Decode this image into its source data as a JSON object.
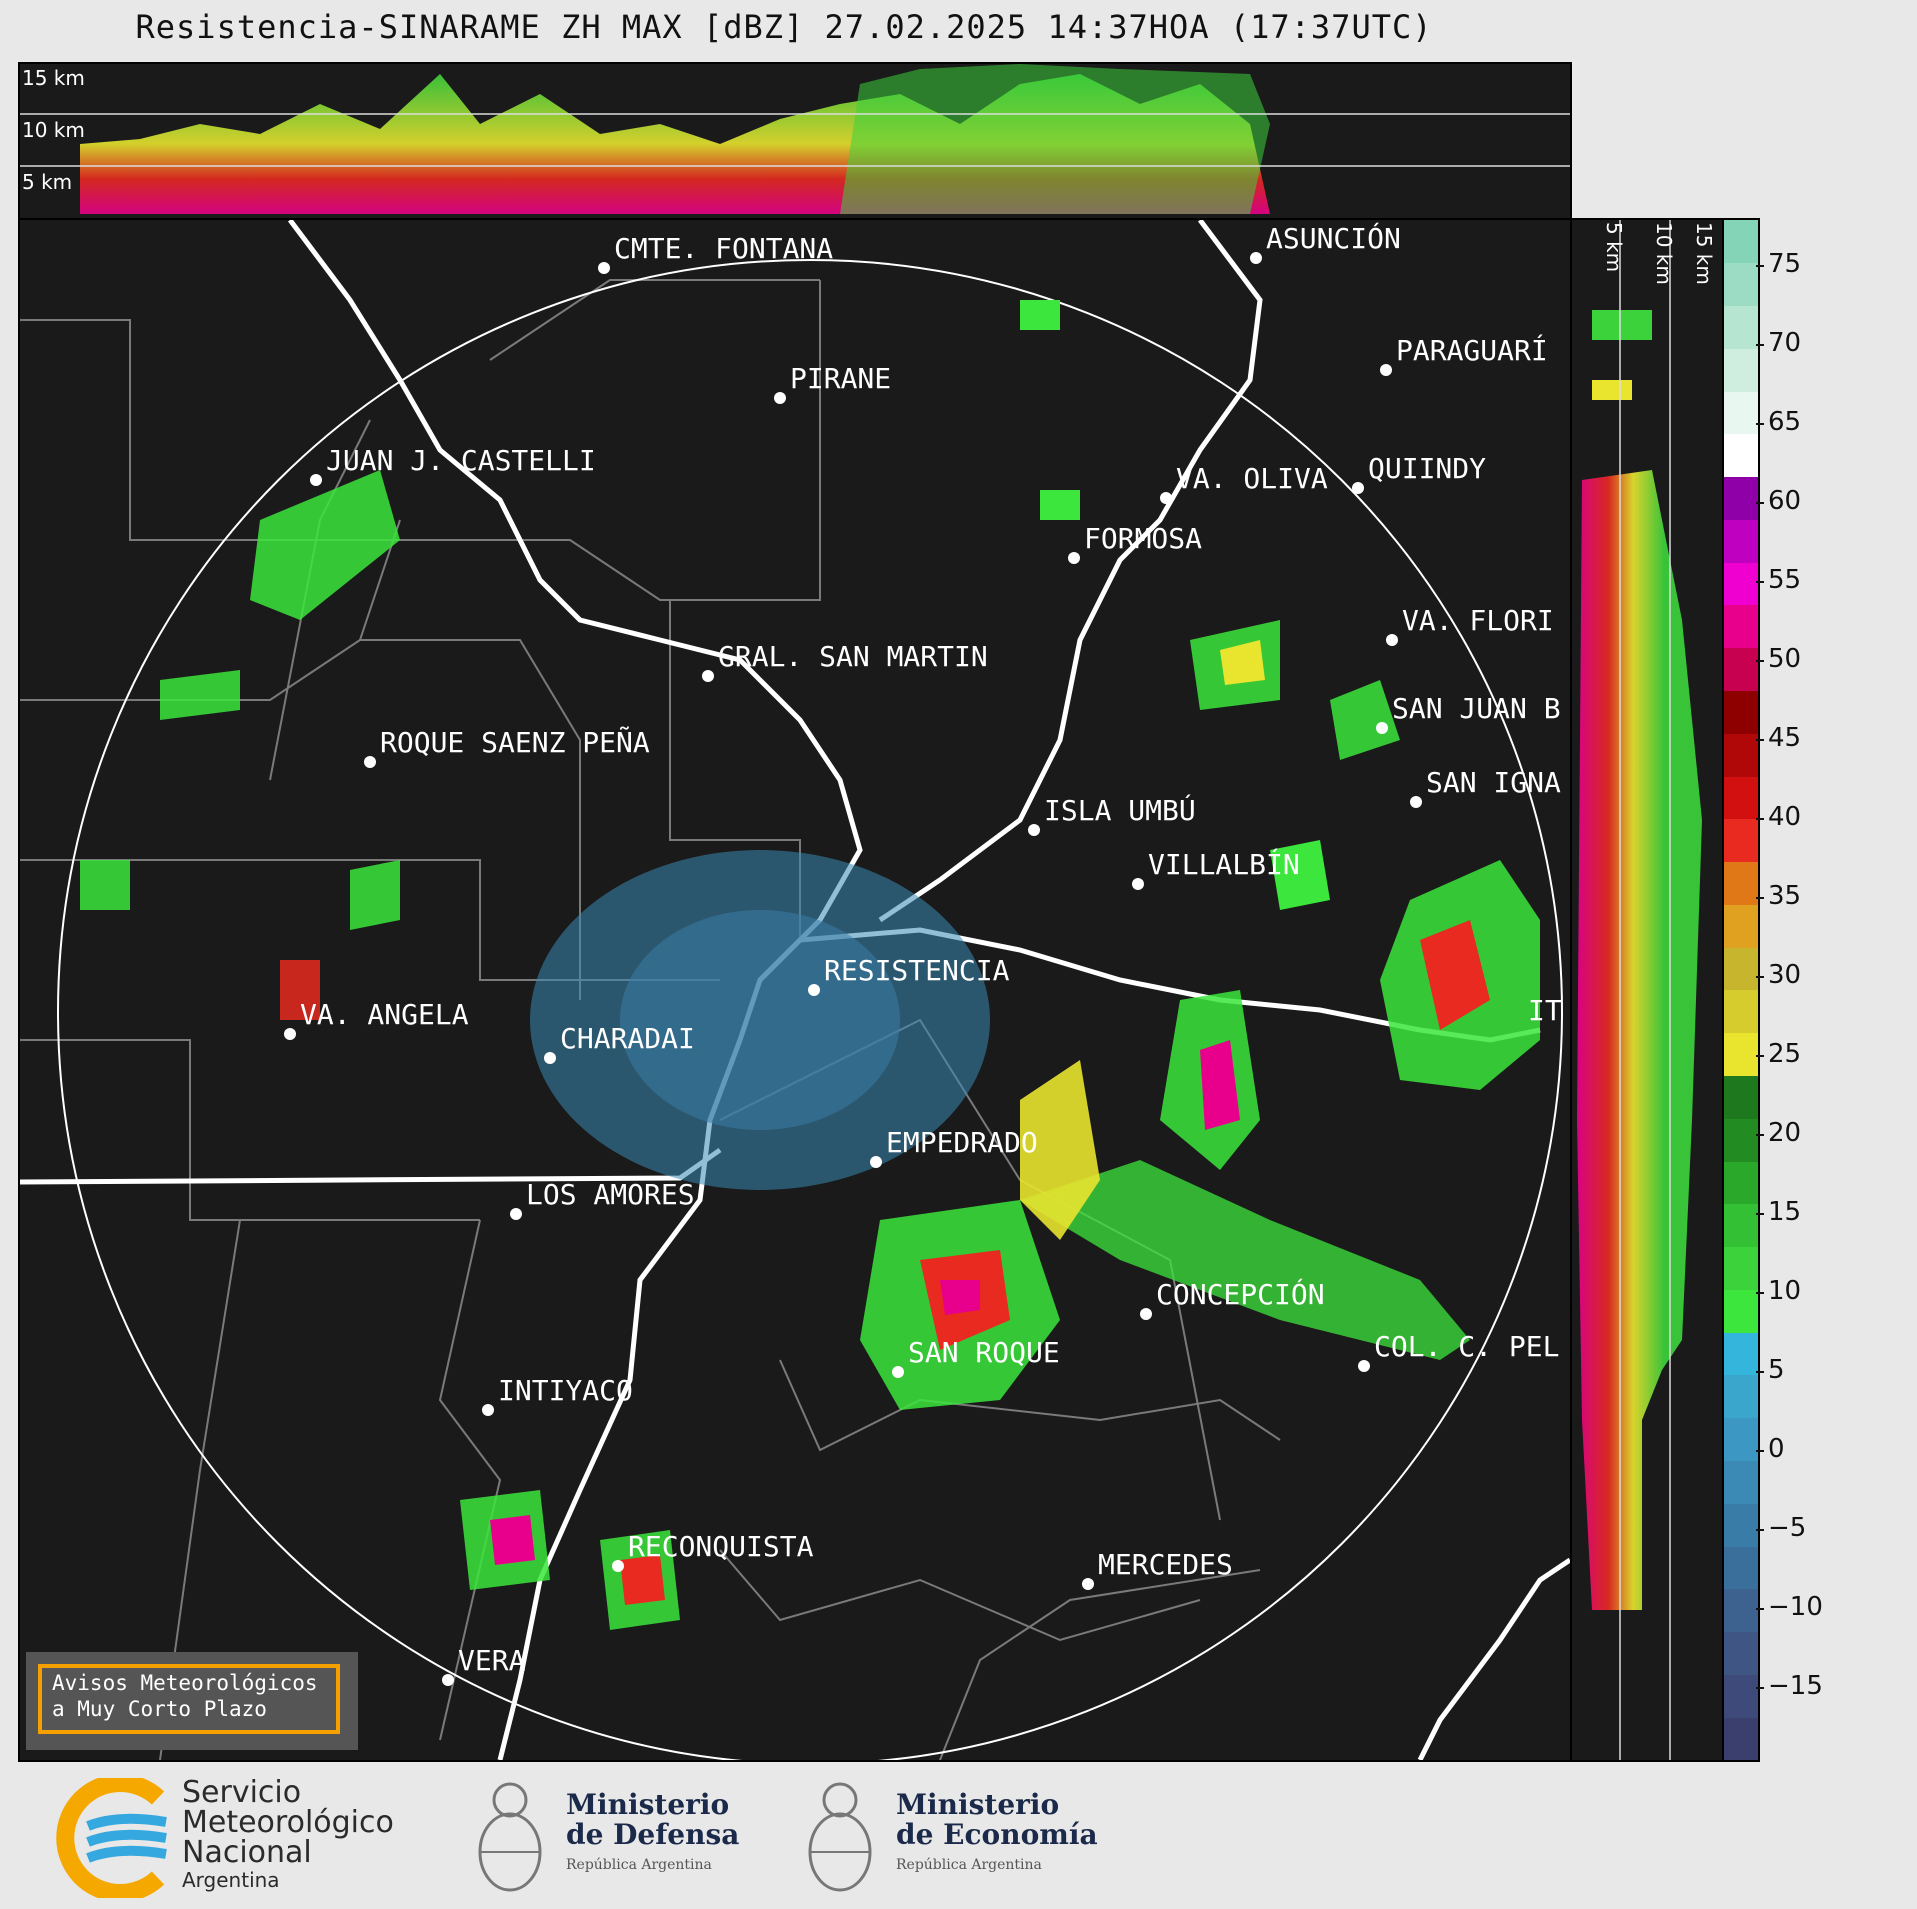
{
  "title": "Resistencia-SINARAME ZH MAX [dBZ] 27.02.2025 14:37HOA (17:37UTC)",
  "top_section": {
    "labels": [
      "15 km",
      "10 km",
      "5 km"
    ]
  },
  "right_section": {
    "labels": [
      "5 km",
      "10 km",
      "15 km"
    ]
  },
  "colorbar": {
    "unit": "dBZ",
    "ticks": [
      "75",
      "70",
      "65",
      "60",
      "55",
      "50",
      "45",
      "40",
      "35",
      "30",
      "25",
      "20",
      "15",
      "10",
      "5",
      "0",
      "−5",
      "−10",
      "−15"
    ],
    "colors": [
      "#3a3f6e",
      "#3e4a7a",
      "#3f5584",
      "#3d6290",
      "#3a6f9c",
      "#3a7ca8",
      "#3b8ab5",
      "#3c98c2",
      "#3aa6cc",
      "#34b6dc",
      "#3ce63c",
      "#3cd23c",
      "#34c034",
      "#2aa82a",
      "#228c22",
      "#1e781e",
      "#e9e42e",
      "#d6cc2e",
      "#c8b52e",
      "#e0a020",
      "#e07818",
      "#e82a20",
      "#d21010",
      "#b00808",
      "#8e0000",
      "#c80050",
      "#e8008c",
      "#f000d0",
      "#c000c0",
      "#9000a8",
      "#ffffff",
      "#e8f8f0",
      "#cfeee0",
      "#b6e6d2",
      "#9cdcc4",
      "#84d4b8"
    ]
  },
  "cities": [
    {
      "name": "CMTE. FONTANA"
    },
    {
      "name": "ASUNCIÓN"
    },
    {
      "name": "PIRANE"
    },
    {
      "name": "PARAGUARÍ"
    },
    {
      "name": "JUAN J. CASTELLI"
    },
    {
      "name": "VA. OLIVA"
    },
    {
      "name": "QUIINDY"
    },
    {
      "name": "FORMOSA"
    },
    {
      "name": "VA. FLORI"
    },
    {
      "name": "GRAL. SAN MARTIN"
    },
    {
      "name": "SAN JUAN B"
    },
    {
      "name": "ROQUE SAENZ PEÑA"
    },
    {
      "name": "SAN IGNA"
    },
    {
      "name": "ISLA UMBÚ"
    },
    {
      "name": "VILLALBÍN"
    },
    {
      "name": "RESISTENCIA"
    },
    {
      "name": "VA. ANGELA"
    },
    {
      "name": "CHARADAI"
    },
    {
      "name": "IT"
    },
    {
      "name": "EMPEDRADO"
    },
    {
      "name": "LOS AMORES"
    },
    {
      "name": "CONCEPCIÓN"
    },
    {
      "name": "SAN ROQUE"
    },
    {
      "name": "COL. C. PEL"
    },
    {
      "name": "INTIYACO"
    },
    {
      "name": "RECONQUISTA"
    },
    {
      "name": "MERCEDES"
    },
    {
      "name": "VERA"
    }
  ],
  "warning": {
    "line1": "Avisos Meteorológicos",
    "line2": "a Muy Corto Plazo"
  },
  "footer": {
    "smn_line1": "Servicio",
    "smn_line2": "Meteorológico",
    "smn_line3": "Nacional",
    "smn_line4": "Argentina",
    "defensa_line1": "Ministerio",
    "defensa_line2": "de Defensa",
    "defensa_line3": "República Argentina",
    "economia_line1": "Ministerio",
    "economia_line2": "de Economía",
    "economia_line3": "República Argentina"
  }
}
